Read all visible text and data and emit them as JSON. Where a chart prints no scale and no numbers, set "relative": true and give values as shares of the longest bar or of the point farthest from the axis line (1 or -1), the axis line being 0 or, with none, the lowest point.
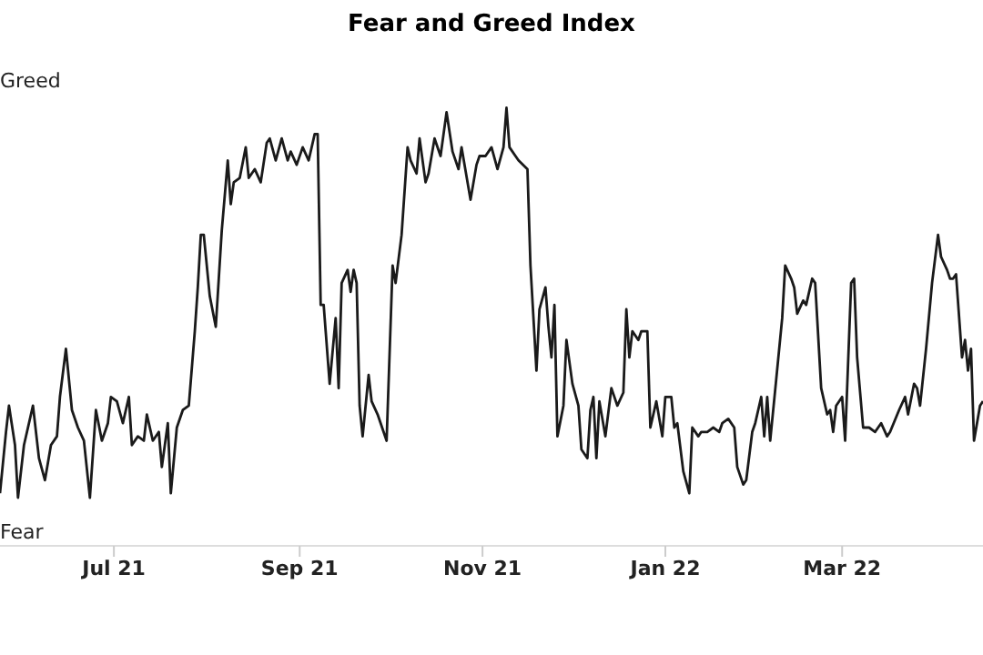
{
  "chart_data": {
    "type": "line",
    "title": "Fear and Greed Index",
    "relative": true,
    "annotations": [
      "Greed",
      "Fear"
    ],
    "xlim": [
      "2021-05-24",
      "2022-04-17"
    ],
    "xticks": [
      {
        "value": "2021-07-01",
        "label": "Jul 21"
      },
      {
        "value": "2021-09-01",
        "label": "Sep 21"
      },
      {
        "value": "2021-11-01",
        "label": "Nov 21"
      },
      {
        "value": "2022-01-01",
        "label": "Jan 22"
      },
      {
        "value": "2022-03-01",
        "label": "Mar 22"
      }
    ],
    "x": [
      "2021-05-24",
      "2021-05-26",
      "2021-05-27",
      "2021-05-29",
      "2021-05-30",
      "2021-06-01",
      "2021-06-04",
      "2021-06-06",
      "2021-06-08",
      "2021-06-10",
      "2021-06-12",
      "2021-06-13",
      "2021-06-15",
      "2021-06-17",
      "2021-06-19",
      "2021-06-21",
      "2021-06-23",
      "2021-06-25",
      "2021-06-27",
      "2021-06-29",
      "2021-06-30",
      "2021-07-02",
      "2021-07-04",
      "2021-07-06",
      "2021-07-07",
      "2021-07-09",
      "2021-07-11",
      "2021-07-12",
      "2021-07-14",
      "2021-07-16",
      "2021-07-17",
      "2021-07-19",
      "2021-07-20",
      "2021-07-22",
      "2021-07-24",
      "2021-07-26",
      "2021-07-28",
      "2021-07-29",
      "2021-07-30",
      "2021-07-31",
      "2021-08-02",
      "2021-08-04",
      "2021-08-05",
      "2021-08-06",
      "2021-08-08",
      "2021-08-09",
      "2021-08-10",
      "2021-08-12",
      "2021-08-14",
      "2021-08-15",
      "2021-08-17",
      "2021-08-19",
      "2021-08-21",
      "2021-08-22",
      "2021-08-24",
      "2021-08-26",
      "2021-08-28",
      "2021-08-29",
      "2021-08-31",
      "2021-09-02",
      "2021-09-04",
      "2021-09-06",
      "2021-09-07",
      "2021-09-08",
      "2021-09-09",
      "2021-09-11",
      "2021-09-13",
      "2021-09-14",
      "2021-09-15",
      "2021-09-17",
      "2021-09-18",
      "2021-09-19",
      "2021-09-20",
      "2021-09-21",
      "2021-09-22",
      "2021-09-24",
      "2021-09-25",
      "2021-09-27",
      "2021-09-30",
      "2021-10-02",
      "2021-10-03",
      "2021-10-05",
      "2021-10-07",
      "2021-10-08",
      "2021-10-10",
      "2021-10-11",
      "2021-10-13",
      "2021-10-14",
      "2021-10-16",
      "2021-10-18",
      "2021-10-20",
      "2021-10-22",
      "2021-10-24",
      "2021-10-25",
      "2021-10-28",
      "2021-10-30",
      "2021-10-31",
      "2021-11-02",
      "2021-11-04",
      "2021-11-06",
      "2021-11-08",
      "2021-11-09",
      "2021-11-10",
      "2021-11-12",
      "2021-11-13",
      "2021-11-16",
      "2021-11-17",
      "2021-11-19",
      "2021-11-20",
      "2021-11-22",
      "2021-11-23",
      "2021-11-24",
      "2021-11-25",
      "2021-11-26",
      "2021-11-28",
      "2021-11-29",
      "2021-12-01",
      "2021-12-03",
      "2021-12-04",
      "2021-12-06",
      "2021-12-07",
      "2021-12-08",
      "2021-12-09",
      "2021-12-10",
      "2021-12-12",
      "2021-12-14",
      "2021-12-16",
      "2021-12-18",
      "2021-12-19",
      "2021-12-20",
      "2021-12-21",
      "2021-12-23",
      "2021-12-24",
      "2021-12-26",
      "2021-12-27",
      "2021-12-29",
      "2021-12-31",
      "2022-01-01",
      "2022-01-03",
      "2022-01-04",
      "2022-01-05",
      "2022-01-07",
      "2022-01-09",
      "2022-01-10",
      "2022-01-12",
      "2022-01-13",
      "2022-01-15",
      "2022-01-17",
      "2022-01-19",
      "2022-01-20",
      "2022-01-22",
      "2022-01-24",
      "2022-01-25",
      "2022-01-27",
      "2022-01-28",
      "2022-01-30",
      "2022-01-31",
      "2022-02-02",
      "2022-02-03",
      "2022-02-04",
      "2022-02-05",
      "2022-02-07",
      "2022-02-09",
      "2022-02-10",
      "2022-02-12",
      "2022-02-13",
      "2022-02-14",
      "2022-02-16",
      "2022-02-17",
      "2022-02-19",
      "2022-02-20",
      "2022-02-22",
      "2022-02-24",
      "2022-02-25",
      "2022-02-26",
      "2022-02-27",
      "2022-03-01",
      "2022-03-02",
      "2022-03-04",
      "2022-03-05",
      "2022-03-06",
      "2022-03-08",
      "2022-03-10",
      "2022-03-12",
      "2022-03-14",
      "2022-03-16",
      "2022-03-17",
      "2022-03-20",
      "2022-03-22",
      "2022-03-23",
      "2022-03-25",
      "2022-03-26",
      "2022-03-27",
      "2022-03-29",
      "2022-03-31",
      "2022-04-02",
      "2022-04-03",
      "2022-04-05",
      "2022-04-06",
      "2022-04-07",
      "2022-04-08",
      "2022-04-10",
      "2022-04-11",
      "2022-04-12",
      "2022-04-13",
      "2022-04-14",
      "2022-04-16",
      "2022-04-17"
    ],
    "series": [
      {
        "color": "#1a1a1a",
        "values": [
          0.12,
          0.26,
          0.32,
          0.23,
          0.11,
          0.23,
          0.32,
          0.2,
          0.15,
          0.23,
          0.25,
          0.34,
          0.45,
          0.31,
          0.27,
          0.24,
          0.11,
          0.31,
          0.24,
          0.28,
          0.34,
          0.33,
          0.28,
          0.34,
          0.23,
          0.25,
          0.24,
          0.3,
          0.24,
          0.26,
          0.18,
          0.28,
          0.12,
          0.27,
          0.31,
          0.32,
          0.49,
          0.59,
          0.71,
          0.71,
          0.57,
          0.5,
          0.61,
          0.72,
          0.88,
          0.78,
          0.83,
          0.84,
          0.91,
          0.84,
          0.86,
          0.83,
          0.92,
          0.93,
          0.88,
          0.93,
          0.88,
          0.9,
          0.87,
          0.91,
          0.88,
          0.94,
          0.94,
          0.55,
          0.55,
          0.37,
          0.52,
          0.36,
          0.6,
          0.63,
          0.58,
          0.63,
          0.6,
          0.32,
          0.25,
          0.39,
          0.33,
          0.3,
          0.24,
          0.64,
          0.6,
          0.71,
          0.91,
          0.88,
          0.85,
          0.93,
          0.83,
          0.85,
          0.93,
          0.89,
          0.99,
          0.9,
          0.86,
          0.91,
          0.79,
          0.87,
          0.89,
          0.89,
          0.91,
          0.86,
          0.91,
          1.0,
          0.91,
          0.89,
          0.88,
          0.86,
          0.64,
          0.4,
          0.54,
          0.59,
          0.5,
          0.43,
          0.55,
          0.25,
          0.32,
          0.47,
          0.37,
          0.32,
          0.22,
          0.2,
          0.31,
          0.34,
          0.2,
          0.33,
          0.25,
          0.36,
          0.32,
          0.35,
          0.54,
          0.43,
          0.49,
          0.47,
          0.49,
          0.49,
          0.27,
          0.33,
          0.25,
          0.34,
          0.34,
          0.27,
          0.28,
          0.17,
          0.12,
          0.27,
          0.25,
          0.26,
          0.26,
          0.27,
          0.26,
          0.28,
          0.29,
          0.27,
          0.18,
          0.14,
          0.15,
          0.26,
          0.28,
          0.34,
          0.25,
          0.34,
          0.24,
          0.38,
          0.52,
          0.64,
          0.61,
          0.59,
          0.53,
          0.56,
          0.55,
          0.61,
          0.6,
          0.36,
          0.3,
          0.31,
          0.26,
          0.32,
          0.34,
          0.24,
          0.6,
          0.61,
          0.43,
          0.27,
          0.27,
          0.26,
          0.28,
          0.25,
          0.26,
          0.31,
          0.34,
          0.3,
          0.37,
          0.36,
          0.32,
          0.45,
          0.6,
          0.71,
          0.66,
          0.63,
          0.61,
          0.61,
          0.62,
          0.43,
          0.47,
          0.4,
          0.45,
          0.24,
          0.32,
          0.33
        ]
      }
    ]
  }
}
